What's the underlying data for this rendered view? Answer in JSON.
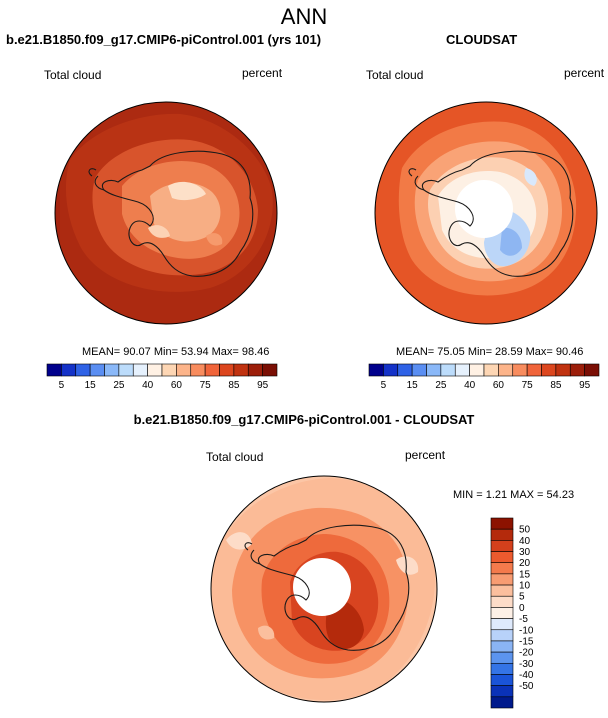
{
  "title": "ANN",
  "panels": [
    {
      "title": "b.e21.B1850.f09_g17.CMIP6-piControl.001 (yrs 101)",
      "variable": "Total cloud",
      "units": "percent",
      "mean": "90.07",
      "min": "53.94",
      "max": "98.46",
      "stats_text": "MEAN= 90.07  Min= 53.94  Max= 98.46"
    },
    {
      "title": "CLOUDSAT",
      "variable": "Total cloud",
      "units": "percent",
      "mean": "75.05",
      "min": "28.59",
      "max": "90.46",
      "stats_text": "MEAN= 75.05  Min= 28.59  Max= 90.46"
    },
    {
      "title": "b.e21.B1850.f09_g17.CMIP6-piControl.001 - CLOUDSAT",
      "variable": "Total cloud",
      "units": "percent",
      "min": "1.21",
      "max": "54.23",
      "stats_text": "MIN =  1.21 MAX = 54.23"
    }
  ],
  "abs_colorbar": {
    "labels": [
      "5",
      "15",
      "25",
      "40",
      "60",
      "75",
      "85",
      "95"
    ],
    "colors": [
      "#00008c",
      "#1432c8",
      "#2f62e6",
      "#5a8ef2",
      "#8ab8f8",
      "#bcdcfb",
      "#e6f1fd",
      "#fff1e4",
      "#fdd6b4",
      "#fcb48a",
      "#f88c5e",
      "#f0643a",
      "#dc461e",
      "#c03210",
      "#9c1e0a",
      "#7a0e04"
    ]
  },
  "diff_colorbar": {
    "labels": [
      "50",
      "40",
      "30",
      "20",
      "15",
      "10",
      "5",
      "0",
      "-5",
      "-10",
      "-15",
      "-20",
      "-30",
      "-40",
      "-50"
    ],
    "colors": [
      "#8c1200",
      "#b42a0c",
      "#d4401c",
      "#ec5a2e",
      "#f47a4c",
      "#f89c72",
      "#fbbf9e",
      "#fddcc8",
      "#fdf0e6",
      "#dfeafc",
      "#b8d2fa",
      "#8ab4f4",
      "#5c94ee",
      "#3474e6",
      "#1a54d8",
      "#0a32b8",
      "#001a8c"
    ]
  },
  "map_colors": {
    "ocean": "#aa2710",
    "coast": "#1a1a1a"
  }
}
